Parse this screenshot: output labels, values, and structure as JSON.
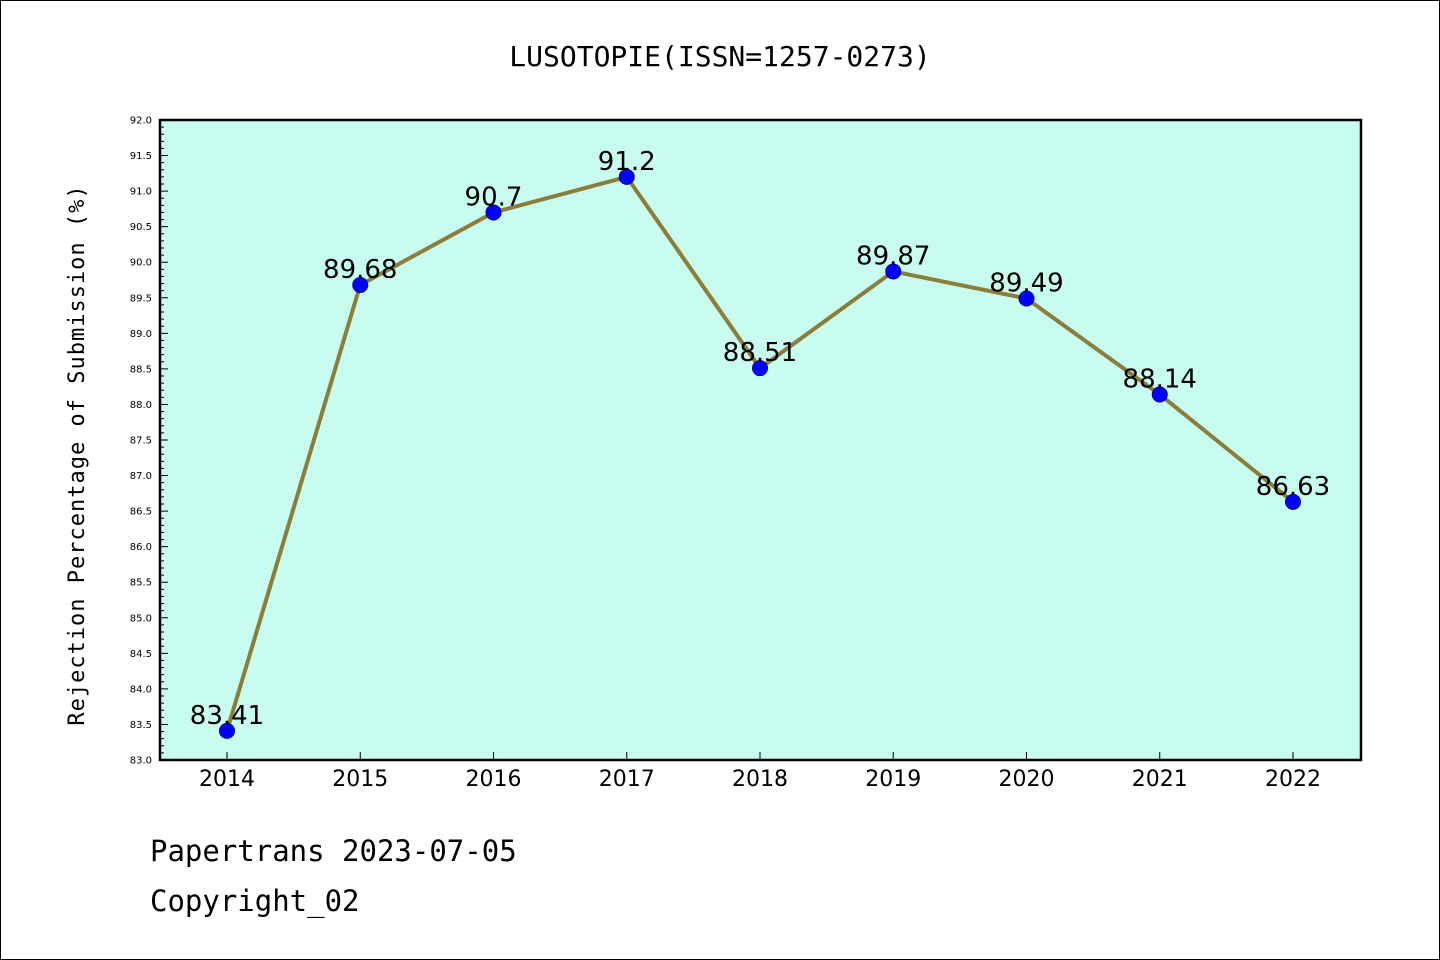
{
  "chart_data": {
    "type": "line",
    "title": "LUSOTOPIE(ISSN=1257-0273)",
    "ylabel": "Rejection Percentage of Submission (%)",
    "xlabel": "",
    "categories": [
      "2014",
      "2015",
      "2016",
      "2017",
      "2018",
      "2019",
      "2020",
      "2021",
      "2022"
    ],
    "values": [
      83.41,
      89.68,
      90.7,
      91.2,
      88.51,
      89.87,
      89.49,
      88.14,
      86.63
    ],
    "data_labels": [
      "83.41",
      "89.68",
      "90.7",
      "91.2",
      "88.51",
      "89.87",
      "89.49",
      "88.14",
      "86.63"
    ],
    "ylim": [
      83.0,
      92.0
    ],
    "ytick_labels": [
      "83.0",
      "83.5",
      "84.0",
      "84.5",
      "85.0",
      "85.5",
      "86.0",
      "86.5",
      "87.0",
      "87.5",
      "88.0",
      "88.5",
      "89.0",
      "89.5",
      "90.0",
      "90.5",
      "91.0",
      "91.5",
      "92.0"
    ],
    "grid": false,
    "colors": {
      "plot_background": "#c8fcee",
      "line": "#8b7d3a",
      "marker": "#0000ff"
    }
  },
  "footer": {
    "line1": "Papertrans 2023-07-05",
    "line2": "Copyright_02"
  }
}
